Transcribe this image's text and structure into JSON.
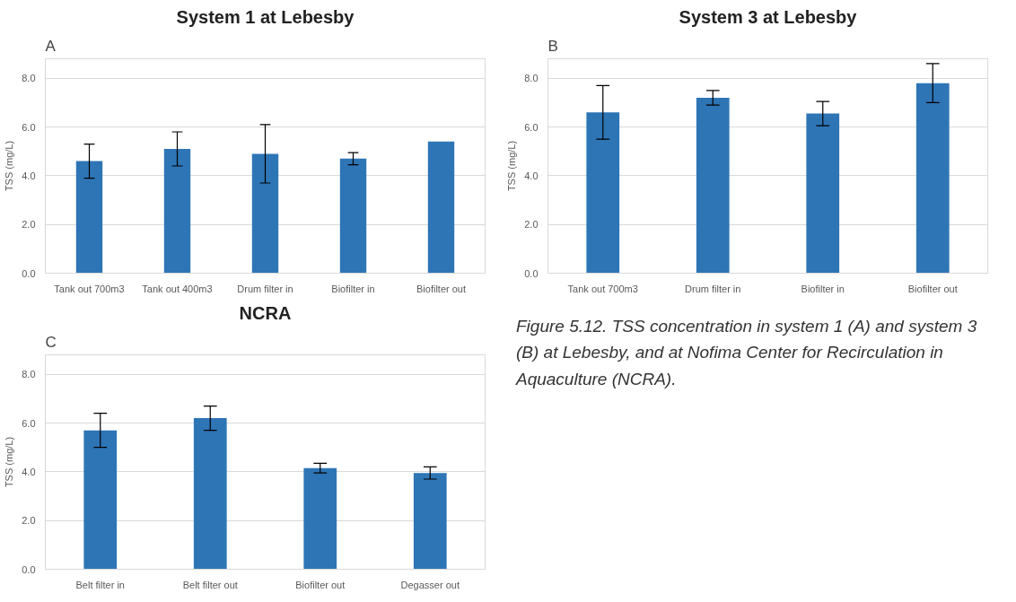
{
  "chart_data": [
    {
      "type": "bar",
      "title": "System 1 at Lebesby",
      "annotations": [
        "A"
      ],
      "ylabel": "TSS (mg/L)",
      "categories": [
        "Tank out 700m3",
        "Tank out 400m3",
        "Drum filter in",
        "Biofilter in",
        "Biofilter out"
      ],
      "values": [
        4.6,
        5.1,
        4.9,
        4.7,
        5.4
      ],
      "errors": [
        0.7,
        0.7,
        1.2,
        0.25,
        null
      ],
      "color": "#2e75b6",
      "ylim": [
        0,
        8.8
      ],
      "yticks": [
        {
          "value": 0,
          "label": "0.0"
        },
        {
          "value": 2,
          "label": "2.0"
        },
        {
          "value": 4,
          "label": "4.0"
        },
        {
          "value": 6,
          "label": "6.0"
        },
        {
          "value": 8,
          "label": "8.0"
        }
      ],
      "grid": "y"
    },
    {
      "type": "bar",
      "title": "System 3 at Lebesby",
      "annotations": [
        "B"
      ],
      "ylabel": "TSS (mg/L)",
      "categories": [
        "Tank out 700m3",
        "Drum filter in",
        "Biofilter in",
        "Biofilter out"
      ],
      "values": [
        6.6,
        7.2,
        6.55,
        7.8
      ],
      "errors": [
        1.1,
        0.3,
        0.5,
        0.8
      ],
      "color": "#2e75b6",
      "ylim": [
        0,
        8.8
      ],
      "yticks": [
        {
          "value": 0,
          "label": "0.0"
        },
        {
          "value": 2,
          "label": "2.0"
        },
        {
          "value": 4,
          "label": "4.0"
        },
        {
          "value": 6,
          "label": "6.0"
        },
        {
          "value": 8,
          "label": "8.0"
        }
      ],
      "grid": "y"
    },
    {
      "type": "bar",
      "title": "NCRA",
      "annotations": [
        "C"
      ],
      "ylabel": "TSS (mg/L)",
      "categories": [
        "Belt filter in",
        "Belt filter out",
        "Biofilter out",
        "Degasser out"
      ],
      "values": [
        5.7,
        6.2,
        4.15,
        3.95
      ],
      "errors": [
        0.7,
        0.5,
        0.2,
        0.25
      ],
      "color": "#2e75b6",
      "ylim": [
        0,
        8.8
      ],
      "yticks": [
        {
          "value": 0,
          "label": "0.0"
        },
        {
          "value": 2,
          "label": "2.0"
        },
        {
          "value": 4,
          "label": "4.0"
        },
        {
          "value": 6,
          "label": "6.0"
        },
        {
          "value": 8,
          "label": "8.0"
        }
      ],
      "grid": "y"
    },
    {
      "type": "other",
      "annotations": [
        "Figure 5.12. TSS concentration in system 1 (A) and system 3 (B) at Lebesby, and at Nofima Center for Recirculation in Aquaculture (NCRA)."
      ]
    }
  ]
}
